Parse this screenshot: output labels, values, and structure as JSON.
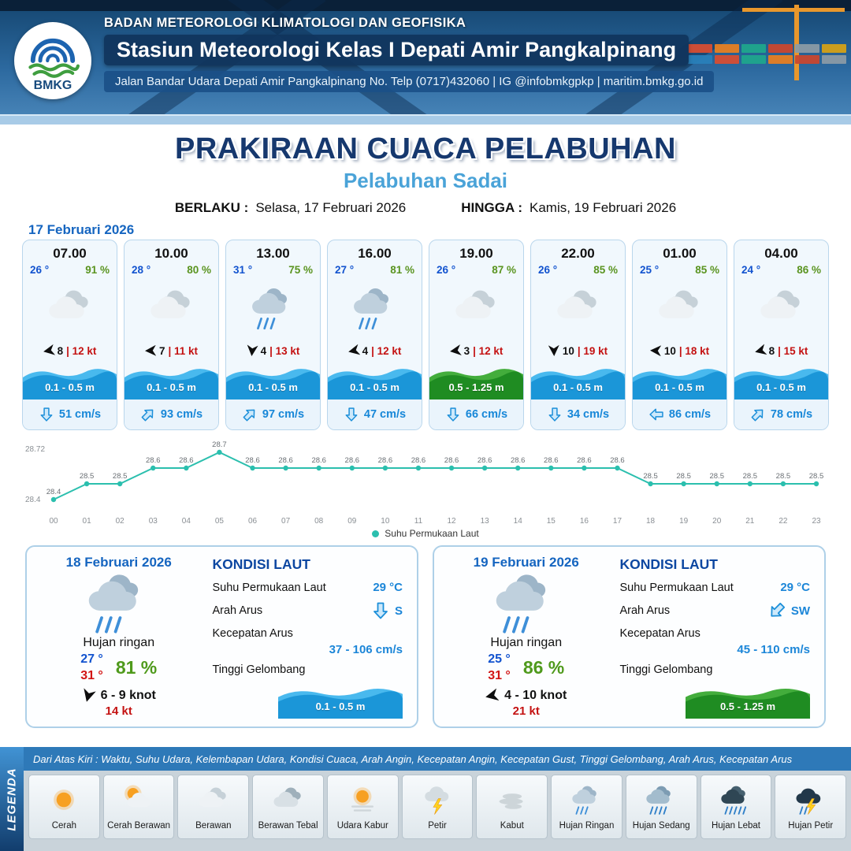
{
  "header": {
    "org": "BADAN METEOROLOGI KLIMATOLOGI DAN GEOFISIKA",
    "station": "Stasiun Meteorologi Kelas I Depati Amir Pangkalpinang",
    "address": "Jalan Bandar Udara Depati Amir Pangkalpinang No. Telp (0717)432060 | IG @infobmkgpkp | maritim.bmkg.go.id",
    "logo_text": "BMKG"
  },
  "title": {
    "main": "PRAKIRAAN CUACA PELABUHAN",
    "sub": "Pelabuhan Sadai"
  },
  "validity": {
    "berlaku_label": "BERLAKU :",
    "berlaku_value": "Selasa, 17 Februari 2026",
    "hingga_label": "HINGGA :",
    "hingga_value": "Kamis, 19 Februari 2026"
  },
  "forecast": {
    "date": "17 Februari 2026",
    "cards": [
      {
        "time": "07.00",
        "temp": "26 °",
        "rh": "91 %",
        "icon": "berawan",
        "wind_rot": 170,
        "wind": "8",
        "gust": "| 12 kt",
        "wave": "0.1 - 0.5 m",
        "wave_class": "wave-blue",
        "cur_rot": 180,
        "current": "51 cm/s"
      },
      {
        "time": "10.00",
        "temp": "28 °",
        "rh": "80 %",
        "icon": "berawan",
        "wind_rot": 178,
        "wind": "7",
        "gust": "| 11 kt",
        "wave": "0.1 - 0.5 m",
        "wave_class": "wave-blue",
        "cur_rot": 45,
        "current": "93 cm/s"
      },
      {
        "time": "13.00",
        "temp": "31 °",
        "rh": "75 %",
        "icon": "hujan-ringan",
        "wind_rot": 95,
        "wind": "4",
        "gust": "| 13 kt",
        "wave": "0.1 - 0.5 m",
        "wave_class": "wave-blue",
        "cur_rot": 45,
        "current": "97 cm/s"
      },
      {
        "time": "16.00",
        "temp": "27 °",
        "rh": "81 %",
        "icon": "hujan-ringan",
        "wind_rot": 168,
        "wind": "4",
        "gust": "| 12 kt",
        "wave": "0.1 - 0.5 m",
        "wave_class": "wave-blue",
        "cur_rot": 180,
        "current": "47 cm/s"
      },
      {
        "time": "19.00",
        "temp": "26 °",
        "rh": "87 %",
        "icon": "berawan",
        "wind_rot": 172,
        "wind": "3",
        "gust": "| 12 kt",
        "wave": "0.5 - 1.25 m",
        "wave_class": "wave-green",
        "cur_rot": 180,
        "current": "66 cm/s"
      },
      {
        "time": "22.00",
        "temp": "26 °",
        "rh": "85 %",
        "icon": "berawan",
        "wind_rot": 88,
        "wind": "10",
        "gust": "| 19 kt",
        "wave": "0.1 - 0.5 m",
        "wave_class": "wave-blue",
        "cur_rot": 180,
        "current": "34 cm/s"
      },
      {
        "time": "01.00",
        "temp": "25 °",
        "rh": "85 %",
        "icon": "berawan",
        "wind_rot": 182,
        "wind": "10",
        "gust": "| 18 kt",
        "wave": "0.1 - 0.5 m",
        "wave_class": "wave-blue",
        "cur_rot": -90,
        "current": "86 cm/s"
      },
      {
        "time": "04.00",
        "temp": "24 °",
        "rh": "86 %",
        "icon": "berawan",
        "wind_rot": 166,
        "wind": "8",
        "gust": "| 15 kt",
        "wave": "0.1 - 0.5 m",
        "wave_class": "wave-blue",
        "cur_rot": 45,
        "current": "78 cm/s"
      }
    ]
  },
  "chart_data": {
    "type": "line",
    "x": [
      "00",
      "01",
      "02",
      "03",
      "04",
      "05",
      "06",
      "07",
      "08",
      "09",
      "10",
      "11",
      "12",
      "13",
      "14",
      "15",
      "16",
      "17",
      "18",
      "19",
      "20",
      "21",
      "22",
      "23"
    ],
    "series": [
      {
        "name": "Suhu Permukaan Laut",
        "values": [
          28.4,
          28.5,
          28.5,
          28.6,
          28.6,
          28.7,
          28.6,
          28.6,
          28.6,
          28.6,
          28.6,
          28.6,
          28.6,
          28.6,
          28.6,
          28.6,
          28.6,
          28.6,
          28.5,
          28.5,
          28.5,
          28.5,
          28.5,
          28.5
        ]
      }
    ],
    "ylim": [
      28.4,
      28.72
    ],
    "yticks": [
      "28.72",
      "28.4"
    ],
    "grid": false,
    "legend_position": "bottom",
    "line_color": "#2bbfae",
    "xlabel": "",
    "ylabel": ""
  },
  "day_cards": [
    {
      "date": "18 Februari 2026",
      "icon": "hujan-ringan",
      "cond": "Hujan ringan",
      "tmin": "27 °",
      "tmax": "31 °",
      "rh": "81 %",
      "wind_rot": 105,
      "wind": "6 - 9 knot",
      "gust": "14 kt",
      "sea_title": "KONDISI LAUT",
      "sst_label": "Suhu Permukaan Laut",
      "sst": "29 °C",
      "arus_dir_label": "Arah Arus",
      "arus_rot": 180,
      "arus_dir": "S",
      "arus_speed_label": "Kecepatan Arus",
      "arus_speed": "37 - 106 cm/s",
      "wave_label": "Tinggi Gelombang",
      "wave": "0.1 - 0.5 m",
      "wave_class": "wave-blue"
    },
    {
      "date": "19 Februari 2026",
      "icon": "hujan-ringan",
      "cond": "Hujan ringan",
      "tmin": "25 °",
      "tmax": "31 °",
      "rh": "86 %",
      "wind_rot": 168,
      "wind": "4 - 10 knot",
      "gust": "21 kt",
      "sea_title": "KONDISI LAUT",
      "sst_label": "Suhu Permukaan Laut",
      "sst": "29 °C",
      "arus_dir_label": "Arah Arus",
      "arus_rot": 225,
      "arus_dir": "SW",
      "arus_speed_label": "Kecepatan Arus",
      "arus_speed": "45 - 110 cm/s",
      "wave_label": "Tinggi Gelombang",
      "wave": "0.5 - 1.25 m",
      "wave_class": "wave-green"
    }
  ],
  "legend": {
    "title": "LEGENDA",
    "description": "Dari Atas Kiri : Waktu, Suhu Udara, Kelembapan Udara, Kondisi Cuaca, Arah Angin, Kecepatan Angin, Kecepatan Gust, Tinggi Gelombang, Arah Arus, Kecepatan Arus",
    "items": [
      {
        "label": "Cerah",
        "icon": "cerah"
      },
      {
        "label": "Cerah Berawan",
        "icon": "cerah-berawan"
      },
      {
        "label": "Berawan",
        "icon": "berawan"
      },
      {
        "label": "Berawan Tebal",
        "icon": "berawan-tebal"
      },
      {
        "label": "Udara Kabur",
        "icon": "udara-kabur"
      },
      {
        "label": "Petir",
        "icon": "petir"
      },
      {
        "label": "Kabut",
        "icon": "kabut"
      },
      {
        "label": "Hujan Ringan",
        "icon": "hujan-ringan"
      },
      {
        "label": "Hujan Sedang",
        "icon": "hujan-sedang"
      },
      {
        "label": "Hujan Lebat",
        "icon": "hujan-lebat"
      },
      {
        "label": "Hujan Petir",
        "icon": "hujan-petir"
      }
    ]
  },
  "colors": {
    "accent_blue": "#1565c0",
    "value_blue": "#1c86d8",
    "temp_blue": "#1253cf",
    "temp_red": "#d21414",
    "humidity_green": "#5a9420",
    "gust_red": "#c41212",
    "wave_blue": "#1b96d8",
    "wave_green": "#1f8c22",
    "line_teal": "#2bbfae"
  }
}
